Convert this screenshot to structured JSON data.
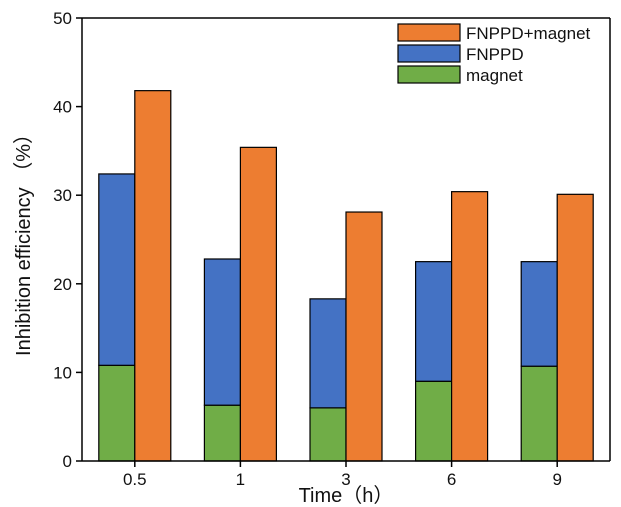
{
  "chart_data": {
    "type": "bar",
    "layout": "grouped-stacked",
    "categories": [
      "0.5",
      "1",
      "3",
      "6",
      "9"
    ],
    "stacked_group": {
      "series": [
        {
          "name": "magnet",
          "color": "#70AD47",
          "values": [
            10.8,
            6.3,
            6.0,
            9.0,
            10.7
          ]
        },
        {
          "name": "FNPPD",
          "color": "#4472C4",
          "values": [
            21.6,
            16.5,
            12.3,
            13.5,
            11.8
          ]
        }
      ],
      "totals": [
        32.4,
        22.8,
        18.3,
        22.5,
        22.5
      ]
    },
    "side_series": {
      "name": "FNPPD+magnet",
      "color": "#ED7D31",
      "values": [
        41.8,
        35.4,
        28.1,
        30.4,
        30.1
      ]
    },
    "xlabel": "Time（h）",
    "ylabel": "Inhibition efficiency （%）",
    "ylim": [
      0,
      50
    ],
    "yticks": [
      0,
      10,
      20,
      30,
      40,
      50
    ],
    "legend_position": "top-right",
    "legend_order": [
      "FNPPD+magnet",
      "FNPPD",
      "magnet"
    ],
    "grid": false
  }
}
